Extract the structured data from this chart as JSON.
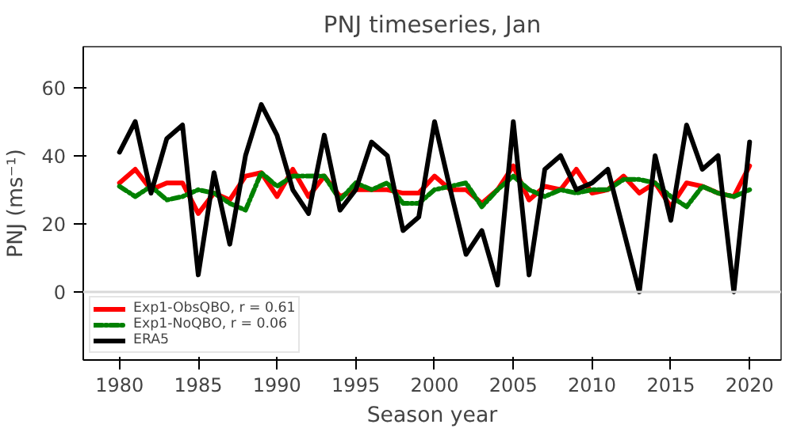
{
  "chart_data": {
    "type": "line",
    "title": "PNJ timeseries, Jan",
    "xlabel": "Season year",
    "ylabel": "PNJ (ms⁻¹)",
    "x": [
      1980,
      1981,
      1982,
      1983,
      1984,
      1985,
      1986,
      1987,
      1988,
      1989,
      1990,
      1991,
      1992,
      1993,
      1994,
      1995,
      1996,
      1997,
      1998,
      1999,
      2000,
      2001,
      2002,
      2003,
      2004,
      2005,
      2006,
      2007,
      2008,
      2009,
      2010,
      2011,
      2012,
      2013,
      2014,
      2015,
      2016,
      2017,
      2018,
      2019,
      2020
    ],
    "series": [
      {
        "name": "Exp1-ObsQBO, r = 0.61",
        "color": "#ff0000",
        "line_style": "solid",
        "values": [
          32,
          36,
          30,
          32,
          32,
          23,
          29,
          27,
          34,
          35,
          28,
          36,
          28,
          34,
          28,
          30,
          30,
          30,
          29,
          29,
          34,
          30,
          30,
          26,
          30,
          37,
          27,
          31,
          30,
          36,
          29,
          30,
          34,
          29,
          32,
          25,
          32,
          31,
          29,
          28,
          37
        ]
      },
      {
        "name": "Exp1-NoQBO, r = 0.06",
        "color": "#008000",
        "line_style": "dashdot",
        "values": [
          31,
          28,
          31,
          27,
          28,
          30,
          29,
          26,
          24,
          35,
          31,
          34,
          34,
          34,
          27,
          32,
          30,
          32,
          26,
          26,
          30,
          31,
          32,
          25,
          30,
          34,
          30,
          28,
          30,
          29,
          30,
          30,
          33,
          33,
          32,
          28,
          25,
          31,
          29,
          28,
          30
        ]
      },
      {
        "name": "ERA5",
        "color": "#000000",
        "line_style": "solid",
        "values": [
          41,
          50,
          29,
          45,
          49,
          5,
          35,
          14,
          40,
          55,
          46,
          30,
          23,
          46,
          24,
          30,
          44,
          40,
          18,
          22,
          50,
          30,
          11,
          18,
          2,
          50,
          5,
          36,
          40,
          30,
          32,
          36,
          18,
          0,
          40,
          21,
          49,
          36,
          40,
          0,
          44
        ]
      }
    ],
    "xlim": [
      1977.7,
      2022
    ],
    "ylim": [
      -20,
      72
    ],
    "xticks": [
      1980,
      1985,
      1990,
      1995,
      2000,
      2005,
      2010,
      2015,
      2020
    ],
    "yticks": [
      0,
      20,
      40,
      60
    ],
    "ref_lines": [
      {
        "axis": "y",
        "value": 0,
        "color": "#d9d9d9"
      }
    ],
    "legend": "bottom left",
    "grid": false
  }
}
